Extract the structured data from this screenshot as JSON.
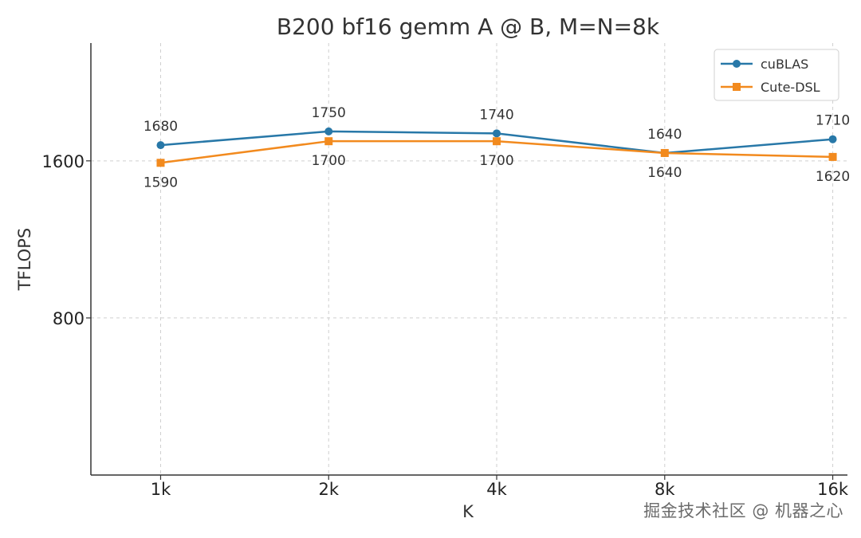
{
  "chart_data": {
    "type": "line",
    "title": "B200 bf16 gemm A @ B, M=N=8k",
    "xlabel": "K",
    "ylabel": "TFLOPS",
    "x": [
      1,
      2,
      4,
      8,
      16
    ],
    "x_tick_labels": [
      "1k",
      "2k",
      "4k",
      "8k",
      "16k"
    ],
    "xlim": [
      0.75,
      17.0
    ],
    "y_ticks": [
      800,
      1600
    ],
    "ylim": [
      0,
      2200
    ],
    "grid": true,
    "legend_position": "top-right",
    "series": [
      {
        "name": "cuBLAS",
        "color": "#2878a8",
        "marker": "circle",
        "values": [
          1680,
          1750,
          1740,
          1640,
          1710
        ],
        "label_position": "above"
      },
      {
        "name": "Cute-DSL",
        "color": "#f28a1e",
        "marker": "square",
        "values": [
          1590,
          1700,
          1700,
          1640,
          1620
        ],
        "label_position": "below"
      }
    ]
  },
  "watermark": "掘金技术社区 @ 机器之心"
}
